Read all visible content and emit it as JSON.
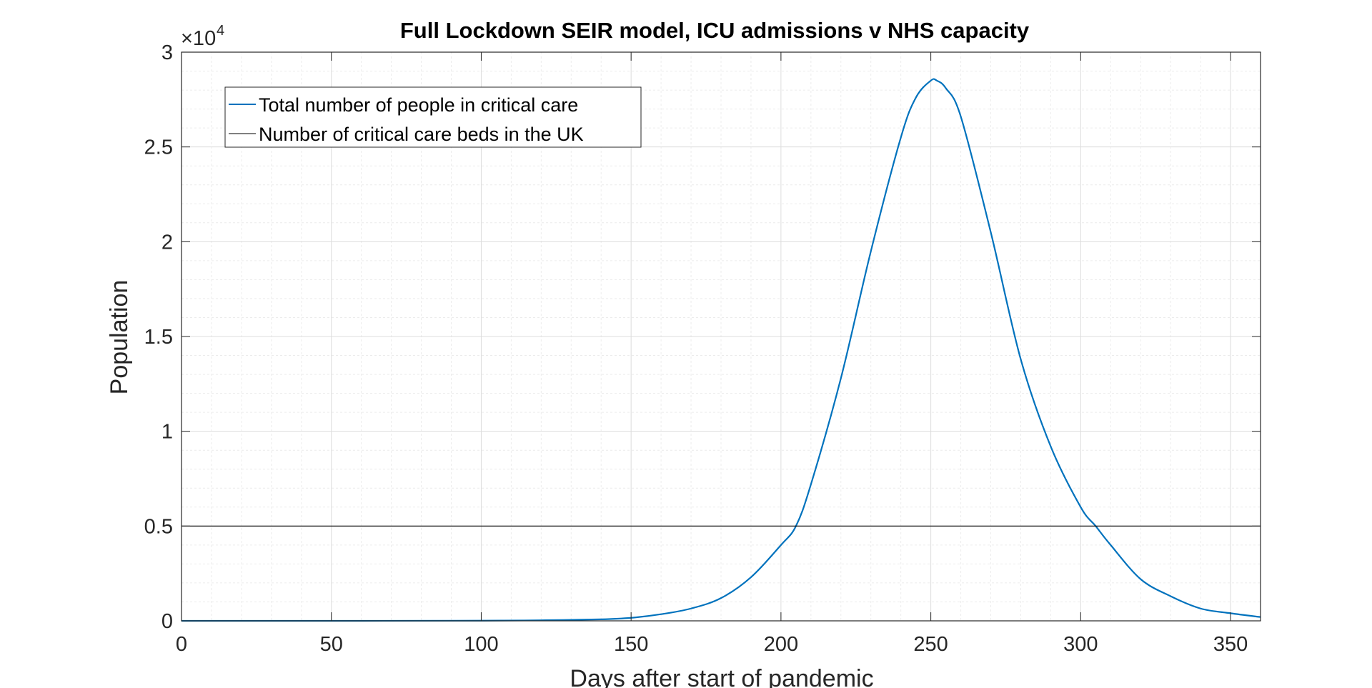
{
  "chart_data": {
    "type": "line",
    "title": "Full Lockdown SEIR model, ICU admissions v NHS capacity",
    "xlabel": "Days after start of pandemic",
    "ylabel": "Population",
    "xlim": [
      0,
      360
    ],
    "ylim": [
      0,
      30000
    ],
    "x_ticks": [
      0,
      50,
      100,
      150,
      200,
      250,
      300,
      350
    ],
    "y_ticks": [
      0,
      0.5,
      1,
      1.5,
      2,
      2.5,
      3
    ],
    "y_tick_labels": [
      "0",
      "0.5",
      "1",
      "1.5",
      "2",
      "2.5",
      "3"
    ],
    "y_exponent_label": "×10",
    "y_exponent_power": "4",
    "grid": true,
    "minor_grid": true,
    "legend_position": "top-left",
    "series": [
      {
        "name": "Total number of people in critical care",
        "color": "#0072BD",
        "x": [
          0,
          50,
          100,
          120,
          140,
          150,
          160,
          170,
          180,
          190,
          200,
          205,
          210,
          220,
          230,
          240,
          245,
          250,
          252,
          255,
          260,
          270,
          280,
          290,
          300,
          305,
          310,
          320,
          330,
          340,
          350,
          360
        ],
        "y": [
          0,
          0,
          10,
          30,
          80,
          160,
          350,
          650,
          1200,
          2300,
          4000,
          5000,
          7200,
          12800,
          19500,
          25500,
          27600,
          28500,
          28500,
          28100,
          26600,
          20500,
          13800,
          9200,
          6000,
          5000,
          4000,
          2200,
          1300,
          650,
          400,
          200
        ]
      },
      {
        "name": "Number of critical care beds in the UK",
        "color": "#000000",
        "x": [
          0,
          360
        ],
        "y": [
          5000,
          5000
        ]
      }
    ]
  }
}
